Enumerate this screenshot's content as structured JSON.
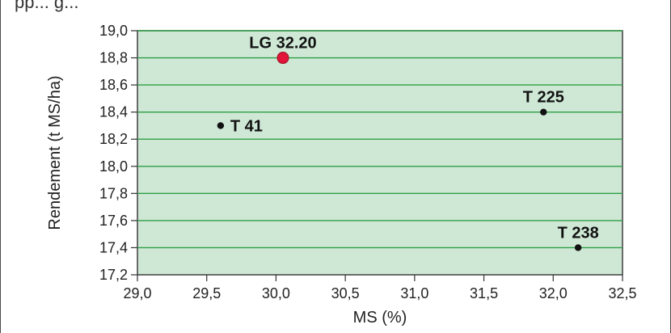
{
  "header_fragment": "pp...                       g...",
  "chart_data": {
    "type": "scatter",
    "xlabel": "MS (%)",
    "ylabel": "Rendement (t MS/ha)",
    "xlim": [
      29.0,
      32.5
    ],
    "ylim": [
      17.2,
      19.0
    ],
    "x_ticks": [
      "29,0",
      "29,5",
      "30,0",
      "30,5",
      "31,0",
      "31,5",
      "32,0",
      "32,5"
    ],
    "y_ticks": [
      "19,0",
      "18,8",
      "18,6",
      "18,4",
      "18,2",
      "18,0",
      "17,8",
      "17,6",
      "17,4",
      "17,2"
    ],
    "grid": true,
    "background_color": "#cfe8d6",
    "grid_color": "#2f9e44",
    "points": [
      {
        "label": "LG 32.20",
        "x": 30.05,
        "y": 18.8,
        "color": "#e2143a",
        "highlight": true
      },
      {
        "label": "T 41",
        "x": 29.6,
        "y": 18.3,
        "color": "#111111",
        "highlight": false
      },
      {
        "label": "T 225",
        "x": 31.93,
        "y": 18.4,
        "color": "#111111",
        "highlight": false
      },
      {
        "label": "T 238",
        "x": 32.18,
        "y": 17.4,
        "color": "#111111",
        "highlight": false
      }
    ]
  }
}
